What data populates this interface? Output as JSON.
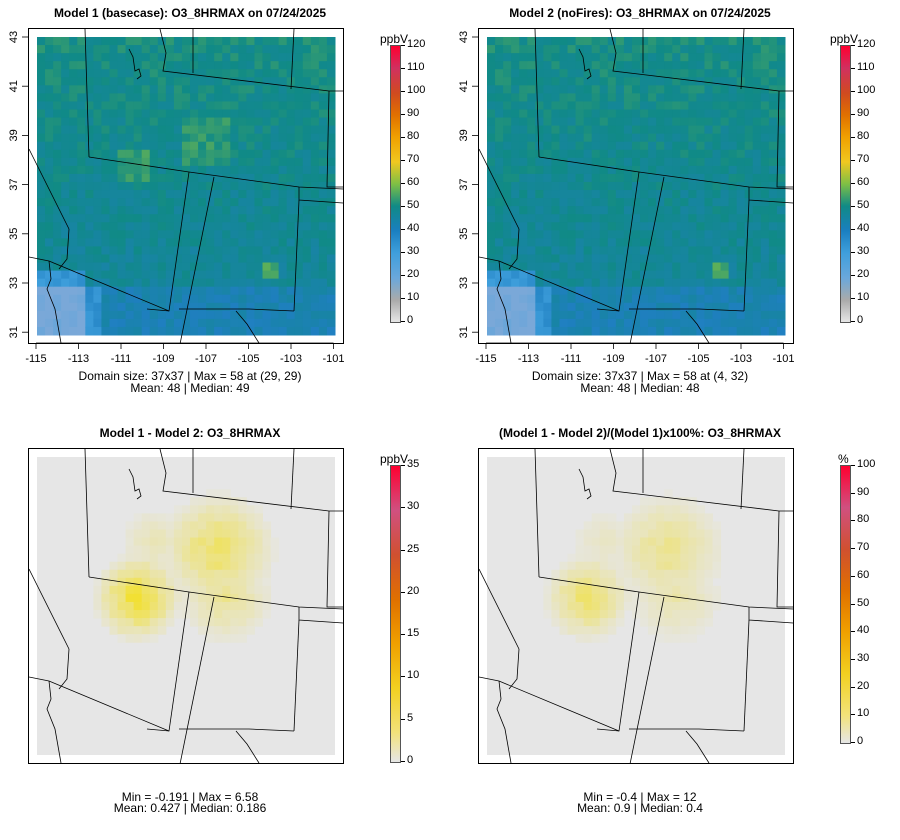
{
  "panels": [
    {
      "title": "Model 1 (basecase): O3_8HRMAX on 07/24/2025",
      "unit": "ppbV",
      "stats_line1": "Domain size: 37x37 | Max = 58 at (29, 29)",
      "stats_line2": "Mean: 48 |  Median: 49",
      "legend_ticks": [
        "120",
        "110",
        "100",
        "90",
        "80",
        "70",
        "60",
        "50",
        "40",
        "30",
        "20",
        "10",
        "0"
      ],
      "axes": {
        "x_ticks": [
          "-115",
          "-113",
          "-111",
          "-109",
          "-107",
          "-105",
          "-103",
          "-101"
        ],
        "y_ticks": [
          "43",
          "41",
          "39",
          "37",
          "35",
          "33",
          "31"
        ]
      }
    },
    {
      "title": "Model 2 (noFires): O3_8HRMAX on 07/24/2025",
      "unit": "ppbV",
      "stats_line1": "Domain size: 37x37 | Max = 58 at (4, 32)",
      "stats_line2": "Mean: 48 |  Median: 48",
      "legend_ticks": [
        "120",
        "110",
        "100",
        "90",
        "80",
        "70",
        "60",
        "50",
        "40",
        "30",
        "20",
        "10",
        "0"
      ],
      "axes": {
        "x_ticks": [
          "-115",
          "-113",
          "-111",
          "-109",
          "-107",
          "-105",
          "-103",
          "-101"
        ],
        "y_ticks": [
          "43",
          "41",
          "39",
          "37",
          "35",
          "33",
          "31"
        ]
      }
    },
    {
      "title": "Model 1 - Model 2: O3_8HRMAX",
      "unit": "ppbV",
      "stats_line1": "Min = -0.191 | Max = 6.58",
      "stats_line2": "Mean: 0.427 |  Median: 0.186",
      "legend_ticks": [
        "35",
        "30",
        "25",
        "20",
        "15",
        "10",
        "5",
        "0"
      ]
    },
    {
      "title": "(Model 1 - Model 2)/(Model 1)x100%: O3_8HRMAX",
      "unit": "%",
      "stats_line1": "Min = -0.4 | Max = 12",
      "stats_line2": "Mean: 0.9 |  Median: 0.4",
      "legend_ticks": [
        "100",
        "90",
        "80",
        "70",
        "60",
        "50",
        "40",
        "30",
        "20",
        "10",
        "0"
      ]
    }
  ],
  "colors": {
    "ozone_base": "#1a8a86",
    "ozone_low": "#4a9fe0",
    "ozone_high": "#7fb84a",
    "diff_bg": "#e6e6e6",
    "diff_hot": "#f2e030"
  }
}
